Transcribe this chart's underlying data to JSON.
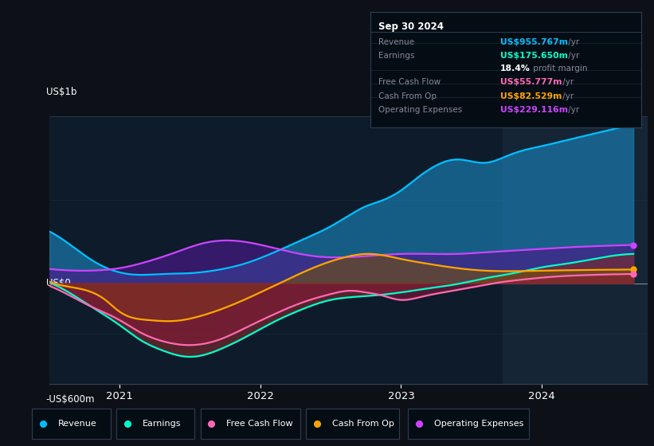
{
  "bg_color": "#0d1117",
  "chart_bg": "#0d1b2a",
  "highlight_bg": "#0d2035",
  "ylabel_top": "US$1b",
  "ylabel_zero": "US$0",
  "ylabel_bottom": "-US$600m",
  "ylim": [
    -600,
    1000
  ],
  "info_box": {
    "date": "Sep 30 2024",
    "rows": [
      {
        "label": "Revenue",
        "value": "US$955.767m",
        "suffix": " /yr",
        "value_color": "#00bfff"
      },
      {
        "label": "Earnings",
        "value": "US$175.650m",
        "suffix": " /yr",
        "value_color": "#00ffcc"
      },
      {
        "label": "",
        "value": "18.4%",
        "suffix": " profit margin",
        "value_color": "#ffffff"
      },
      {
        "label": "Free Cash Flow",
        "value": "US$55.777m",
        "suffix": " /yr",
        "value_color": "#ff69b4"
      },
      {
        "label": "Cash From Op",
        "value": "US$82.529m",
        "suffix": " /yr",
        "value_color": "#ffa500"
      },
      {
        "label": "Operating Expenses",
        "value": "US$229.116m",
        "suffix": " /yr",
        "value_color": "#cc44ff"
      }
    ]
  },
  "legend_items": [
    {
      "label": "Revenue",
      "color": "#00bfff"
    },
    {
      "label": "Earnings",
      "color": "#00ffcc"
    },
    {
      "label": "Free Cash Flow",
      "color": "#ff69b4"
    },
    {
      "label": "Cash From Op",
      "color": "#ffa500"
    },
    {
      "label": "Operating Expenses",
      "color": "#cc44ff"
    }
  ],
  "series": {
    "revenue": {
      "line_color": "#00bfff",
      "fill_color": "#1a7aad",
      "fill_alpha": 0.7,
      "x": [
        2020.5,
        2020.65,
        2020.8,
        2021.0,
        2021.15,
        2021.3,
        2021.5,
        2021.7,
        2021.9,
        2022.1,
        2022.3,
        2022.5,
        2022.65,
        2022.75,
        2022.85,
        2023.0,
        2023.1,
        2023.2,
        2023.4,
        2023.6,
        2023.75,
        2023.85,
        2024.0,
        2024.2,
        2024.4,
        2024.65
      ],
      "y": [
        310,
        230,
        140,
        65,
        50,
        55,
        60,
        80,
        120,
        185,
        260,
        340,
        415,
        460,
        490,
        555,
        620,
        680,
        740,
        720,
        760,
        790,
        820,
        860,
        900,
        950
      ]
    },
    "operating_expenses": {
      "line_color": "#cc44ff",
      "fill_color": "#4a1a8a",
      "fill_alpha": 0.65,
      "x": [
        2020.5,
        2020.7,
        2020.9,
        2021.0,
        2021.2,
        2021.4,
        2021.6,
        2021.8,
        2022.0,
        2022.2,
        2022.4,
        2022.6,
        2022.8,
        2023.0,
        2023.2,
        2023.4,
        2023.6,
        2023.8,
        2024.0,
        2024.2,
        2024.4,
        2024.65
      ],
      "y": [
        85,
        75,
        80,
        90,
        130,
        185,
        240,
        255,
        230,
        190,
        160,
        155,
        165,
        175,
        175,
        175,
        185,
        195,
        205,
        215,
        222,
        229
      ]
    },
    "earnings": {
      "line_color": "#00ffcc",
      "fill_color": "#7a2a2a",
      "fill_alpha": 0.65,
      "x": [
        2020.5,
        2020.65,
        2020.8,
        2021.0,
        2021.15,
        2021.3,
        2021.5,
        2021.7,
        2021.9,
        2022.1,
        2022.3,
        2022.5,
        2022.7,
        2022.85,
        2023.0,
        2023.2,
        2023.4,
        2023.6,
        2023.8,
        2024.0,
        2024.2,
        2024.4,
        2024.65
      ],
      "y": [
        5,
        -60,
        -140,
        -250,
        -340,
        -400,
        -440,
        -400,
        -320,
        -230,
        -155,
        -100,
        -80,
        -70,
        -55,
        -30,
        -5,
        30,
        60,
        95,
        120,
        150,
        175
      ]
    },
    "cash_from_op": {
      "line_color": "#ffa500",
      "fill_color": "#7a5500",
      "fill_alpha": 0.55,
      "x": [
        2020.5,
        2020.7,
        2020.9,
        2021.0,
        2021.2,
        2021.4,
        2021.6,
        2021.8,
        2022.0,
        2022.2,
        2022.4,
        2022.6,
        2022.75,
        2022.85,
        2023.0,
        2023.2,
        2023.4,
        2023.6,
        2023.8,
        2024.0,
        2024.2,
        2024.4,
        2024.65
      ],
      "y": [
        10,
        -30,
        -100,
        -170,
        -220,
        -225,
        -190,
        -130,
        -55,
        25,
        100,
        155,
        175,
        170,
        145,
        115,
        90,
        75,
        72,
        75,
        78,
        80,
        82
      ]
    },
    "free_cash_flow": {
      "line_color": "#ff69b4",
      "fill_color": "#8a1a3a",
      "fill_alpha": 0.55,
      "x": [
        2020.5,
        2020.65,
        2020.8,
        2021.0,
        2021.15,
        2021.3,
        2021.5,
        2021.7,
        2021.9,
        2022.1,
        2022.3,
        2022.5,
        2022.65,
        2022.75,
        2022.85,
        2023.0,
        2023.15,
        2023.3,
        2023.5,
        2023.7,
        2023.9,
        2024.1,
        2024.3,
        2024.5,
        2024.65
      ],
      "y": [
        -15,
        -75,
        -140,
        -220,
        -295,
        -345,
        -370,
        -340,
        -265,
        -185,
        -115,
        -65,
        -45,
        -55,
        -70,
        -100,
        -80,
        -55,
        -25,
        5,
        25,
        40,
        48,
        53,
        55
      ]
    }
  },
  "highlight_x_start": 2023.72,
  "highlight_x_end": 2024.75,
  "x_ticks": [
    2021,
    2022,
    2023,
    2024
  ],
  "x_lim": [
    2020.5,
    2024.75
  ]
}
